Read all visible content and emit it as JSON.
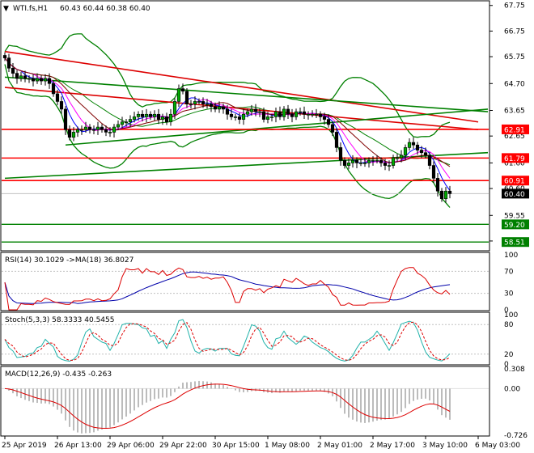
{
  "chart_data": {
    "type": "candlestick",
    "symbol_header": "WTI.fs,H1",
    "ohlc_header": "60.43 60.44 60.38 60.40",
    "colors": {
      "bull": "#00aa00",
      "bear": "#000000",
      "bollinger": "#008000",
      "ma_fast": "#0000ff",
      "ma_mid": "#ff00ff",
      "ma_slow": "#800000",
      "support_resistance": "#ff0000",
      "trendline_green": "#008000",
      "trendline_red": "#dd0000",
      "rsi_line": "#dd0000",
      "rsi_ma": "#0000aa",
      "stoch_main": "#20b2aa",
      "stoch_signal": "#dd0000",
      "macd_hist": "#a0a0a0",
      "macd_signal": "#dd0000",
      "price_tag": "#ff0000",
      "green_tag": "#008000",
      "last_price_tag": "#000000"
    },
    "price_axis": {
      "ylim": [
        58.2,
        67.9
      ],
      "ticks": [
        "67.75",
        "66.75",
        "65.75",
        "64.70",
        "63.65",
        "62.65",
        "61.60",
        "60.60",
        "59.55",
        "58.55"
      ]
    },
    "levels_red": [
      {
        "value": 62.91,
        "label": "62.91"
      },
      {
        "value": 61.79,
        "label": "61.79"
      },
      {
        "value": 60.91,
        "label": "60.91"
      }
    ],
    "levels_green": [
      {
        "value": 59.2,
        "label": "59.20"
      },
      {
        "value": 58.51,
        "label": "58.51"
      }
    ],
    "last_price": {
      "value": 60.4,
      "label": "60.40"
    },
    "trendlines": [
      {
        "color": "red",
        "x": [
          0,
          117
        ],
        "y": [
          65.95,
          63.2
        ]
      },
      {
        "color": "red",
        "x": [
          0,
          117
        ],
        "y": [
          64.55,
          62.9
        ]
      },
      {
        "color": "green",
        "x": [
          0,
          124
        ],
        "y": [
          64.95,
          63.6
        ]
      },
      {
        "color": "green",
        "x": [
          15,
          124
        ],
        "y": [
          62.3,
          63.7
        ]
      },
      {
        "color": "green",
        "x": [
          0,
          124
        ],
        "y": [
          61.0,
          62.0
        ]
      }
    ],
    "x_axis": {
      "labels": [
        "25 Apr 2019",
        "26 Apr 13:00",
        "29 Apr 06:00",
        "29 Apr 22:00",
        "30 Apr 15:00",
        "1 May 08:00",
        "2 May 01:00",
        "2 May 17:00",
        "3 May 10:00",
        "6 May 03:00"
      ],
      "label_bar_index": [
        0,
        13,
        26,
        39,
        52,
        65,
        78,
        91,
        104,
        117
      ]
    },
    "close": [
      65.7,
      65.3,
      65.1,
      64.9,
      65.0,
      64.9,
      64.9,
      64.8,
      64.9,
      64.8,
      64.9,
      64.7,
      64.3,
      64.0,
      63.7,
      62.9,
      62.6,
      62.8,
      62.9,
      62.9,
      63.0,
      62.9,
      62.9,
      63.0,
      62.9,
      62.8,
      62.8,
      63.0,
      63.1,
      63.2,
      63.2,
      63.3,
      63.4,
      63.5,
      63.4,
      63.5,
      63.4,
      63.5,
      63.3,
      63.4,
      63.2,
      63.5,
      64.0,
      64.5,
      64.4,
      63.9,
      63.9,
      64.0,
      64.0,
      63.9,
      63.9,
      63.8,
      63.7,
      63.8,
      63.7,
      63.5,
      63.4,
      63.4,
      63.3,
      63.5,
      63.6,
      63.7,
      63.6,
      63.6,
      63.3,
      63.4,
      63.4,
      63.6,
      63.4,
      63.7,
      63.5,
      63.4,
      63.6,
      63.6,
      63.5,
      63.5,
      63.5,
      63.5,
      63.4,
      63.3,
      63.1,
      62.8,
      62.2,
      61.7,
      61.5,
      61.6,
      61.7,
      61.6,
      61.6,
      61.6,
      61.7,
      61.7,
      61.7,
      61.6,
      61.5,
      61.5,
      61.8,
      61.8,
      61.9,
      62.2,
      62.4,
      62.3,
      62.1,
      62.0,
      61.9,
      61.5,
      61.0,
      60.5,
      60.2,
      60.5,
      60.4
    ],
    "rsi": {
      "header": "RSI(14) 30.1029  ->MA(18) 36.8027",
      "ticks": [
        "100",
        "70",
        "30",
        "0"
      ],
      "ylim": [
        0,
        100
      ]
    },
    "stoch": {
      "header": "Stoch(5,3,3) 58.3333 40.5455",
      "ticks": [
        "100",
        "80",
        "20",
        "0"
      ],
      "ylim": [
        0,
        100
      ]
    },
    "macd": {
      "header": "MACD(12,26,9) -0.435 -0.263",
      "ticks": [
        "0.308",
        "0.00",
        "-0.726"
      ],
      "ylim": [
        -0.726,
        0.308
      ]
    }
  }
}
